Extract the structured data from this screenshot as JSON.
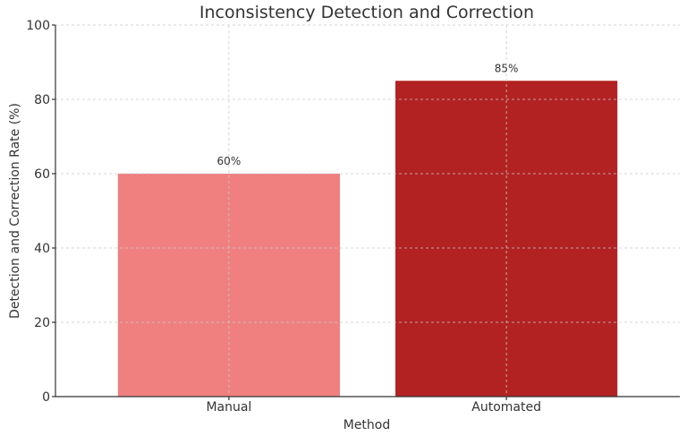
{
  "chart_data": {
    "type": "bar",
    "title": "Inconsistency Detection and Correction",
    "xlabel": "Method",
    "ylabel": "Detection and Correction Rate (%)",
    "categories": [
      "Manual",
      "Automated"
    ],
    "values": [
      60,
      85
    ],
    "value_labels": [
      "60%",
      "85%"
    ],
    "colors": [
      "#f08080",
      "#b22222"
    ],
    "ylim": [
      0,
      100
    ],
    "yticks": [
      0,
      20,
      40,
      60,
      80,
      100
    ],
    "ytick_labels": [
      "0",
      "20",
      "40",
      "60",
      "80",
      "100"
    ],
    "grid": true,
    "legend": false
  }
}
